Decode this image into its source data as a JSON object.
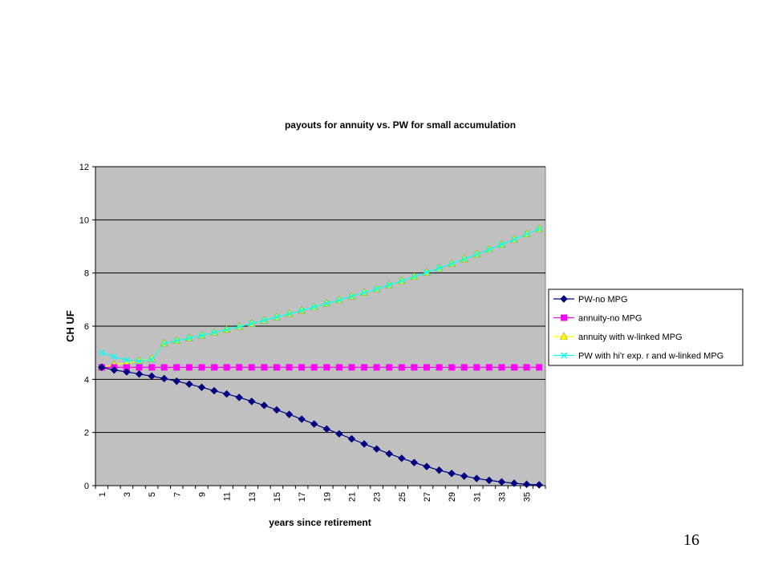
{
  "slide": {
    "page_number": "16"
  },
  "colors": {
    "plot_background": "#c0c0c0",
    "gridline": "#000000",
    "pw_no_mpg": "#000080",
    "annuity_no_mpg": "#ff00ff",
    "annuity_wlinked": "#ffff00",
    "annuity_wlinked_edge": "#a0a000",
    "pw_hir": "#00ffff"
  },
  "chart_data": {
    "type": "line",
    "title": "payouts for annuity vs. PW for small accumulation",
    "xlabel": "years since retirement",
    "ylabel": "CH UF",
    "ylim": [
      0,
      12
    ],
    "yticks": [
      "0",
      "2",
      "4",
      "6",
      "8",
      "10",
      "12"
    ],
    "x": [
      1,
      2,
      3,
      4,
      5,
      6,
      7,
      8,
      9,
      10,
      11,
      12,
      13,
      14,
      15,
      16,
      17,
      18,
      19,
      20,
      21,
      22,
      23,
      24,
      25,
      26,
      27,
      28,
      29,
      30,
      31,
      32,
      33,
      34,
      35,
      36
    ],
    "xtick_labels": [
      "1",
      "3",
      "5",
      "7",
      "9",
      "11",
      "13",
      "15",
      "17",
      "19",
      "21",
      "23",
      "25",
      "27",
      "29",
      "31",
      "33",
      "35"
    ],
    "grid": true,
    "legend_position": "right",
    "series": [
      {
        "name": "PW-no MPG",
        "marker": "diamond",
        "color": "#000080",
        "values": [
          4.45,
          4.35,
          4.28,
          4.2,
          4.12,
          4.03,
          3.93,
          3.82,
          3.7,
          3.57,
          3.45,
          3.32,
          3.17,
          3.02,
          2.85,
          2.68,
          2.5,
          2.32,
          2.13,
          1.95,
          1.76,
          1.57,
          1.38,
          1.2,
          1.03,
          0.87,
          0.72,
          0.58,
          0.46,
          0.36,
          0.27,
          0.2,
          0.14,
          0.09,
          0.05,
          0.03
        ]
      },
      {
        "name": "annuity-no MPG",
        "marker": "square",
        "color": "#ff00ff",
        "values": [
          4.45,
          4.45,
          4.45,
          4.45,
          4.45,
          4.45,
          4.45,
          4.45,
          4.45,
          4.45,
          4.45,
          4.45,
          4.45,
          4.45,
          4.45,
          4.45,
          4.45,
          4.45,
          4.45,
          4.45,
          4.45,
          4.45,
          4.45,
          4.45,
          4.45,
          4.45,
          4.45,
          4.45,
          4.45,
          4.45,
          4.45,
          4.45,
          4.45,
          4.45,
          4.45,
          4.45
        ]
      },
      {
        "name": "annuity with w-linked MPG",
        "marker": "triangle",
        "color": "#ffff00",
        "values": [
          4.45,
          4.55,
          4.62,
          4.7,
          4.77,
          5.35,
          5.45,
          5.55,
          5.65,
          5.76,
          5.87,
          5.98,
          6.1,
          6.22,
          6.34,
          6.46,
          6.59,
          6.72,
          6.85,
          6.98,
          7.12,
          7.26,
          7.4,
          7.55,
          7.7,
          7.86,
          8.02,
          8.18,
          8.35,
          8.52,
          8.7,
          8.88,
          9.07,
          9.26,
          9.46,
          9.66
        ]
      },
      {
        "name": "PW with hi'r exp. r and w-linked MPG",
        "marker": "x",
        "color": "#00ffff",
        "values": [
          5.0,
          4.85,
          4.72,
          4.68,
          4.75,
          5.35,
          5.45,
          5.55,
          5.65,
          5.76,
          5.87,
          5.98,
          6.1,
          6.22,
          6.34,
          6.46,
          6.59,
          6.72,
          6.85,
          6.98,
          7.12,
          7.26,
          7.4,
          7.55,
          7.7,
          7.86,
          8.02,
          8.18,
          8.35,
          8.52,
          8.7,
          8.88,
          9.07,
          9.26,
          9.46,
          9.66
        ]
      }
    ]
  }
}
